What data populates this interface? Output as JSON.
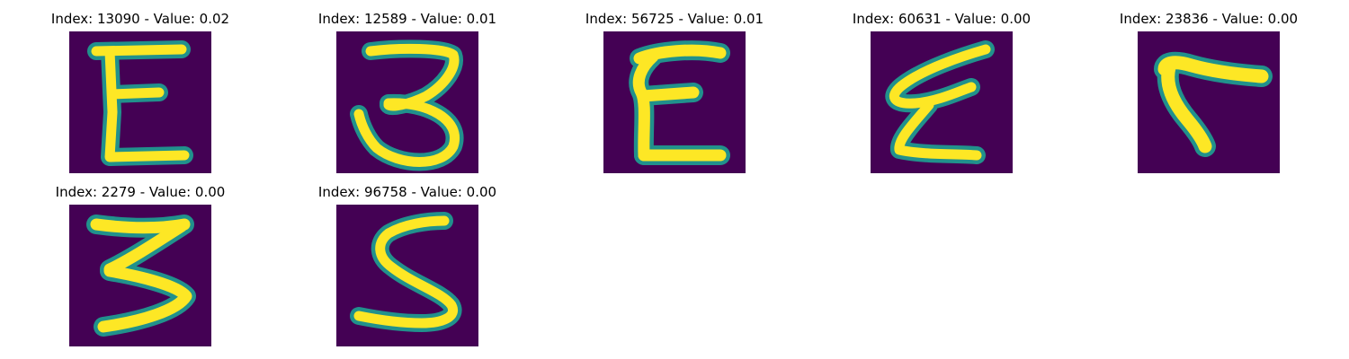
{
  "colors": {
    "background": "#440154",
    "mid": "#21918c",
    "stroke": "#fde725"
  },
  "panels": [
    {
      "title": "Index: 13090 - Value: 0.02",
      "glyph": "E-shape"
    },
    {
      "title": "Index: 12589 - Value: 0.01",
      "glyph": "3-shape"
    },
    {
      "title": "Index: 56725 - Value: 0.01",
      "glyph": "E-shape"
    },
    {
      "title": "Index: 60631 - Value: 0.00",
      "glyph": "E-shape"
    },
    {
      "title": "Index: 23836 - Value: 0.00",
      "glyph": "7-shape"
    },
    {
      "title": "Index: 2279 - Value: 0.00",
      "glyph": "3-shape"
    },
    {
      "title": "Index: 96758 - Value: 0.00",
      "glyph": "S-shape"
    }
  ]
}
